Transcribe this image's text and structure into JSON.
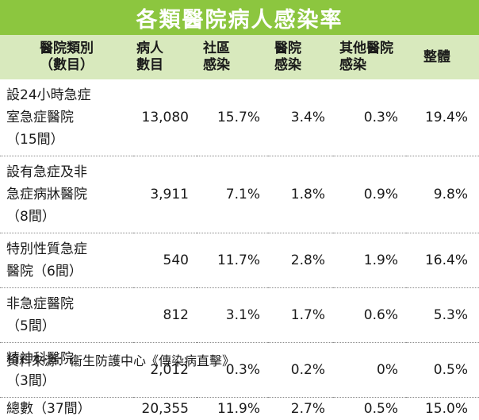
{
  "title": "各類醫院病人感染率",
  "headers": {
    "category": [
      "醫院類別",
      "（數目）"
    ],
    "patients": [
      "病人",
      "數目"
    ],
    "community": [
      "社區",
      "感染"
    ],
    "hospital": [
      "醫院",
      "感染"
    ],
    "other": [
      "其他醫院",
      "感染"
    ],
    "total": [
      "整體"
    ]
  },
  "rows": [
    {
      "lines": [
        "設24小時急症",
        "室急症醫院",
        "（15間）"
      ],
      "patients": "13,080",
      "community": "15.7%",
      "hospital": "3.4%",
      "other": "0.3%",
      "total": "19.4%"
    },
    {
      "lines": [
        "設有急症及非",
        "急症病牀醫院",
        "（8間）"
      ],
      "patients": "3,911",
      "community": "7.1%",
      "hospital": "1.8%",
      "other": "0.9%",
      "total": "9.8%"
    },
    {
      "lines": [
        "特別性質急症",
        "醫院（6間）"
      ],
      "patients": "540",
      "community": "11.7%",
      "hospital": "2.8%",
      "other": "1.9%",
      "total": "16.4%"
    },
    {
      "lines": [
        "非急症醫院",
        "（5間）"
      ],
      "patients": "812",
      "community": "3.1%",
      "hospital": "1.7%",
      "other": "0.6%",
      "total": "5.3%"
    },
    {
      "lines": [
        "精神科醫院",
        "（3間）"
      ],
      "patients": "2,012",
      "community": "0.3%",
      "hospital": "0.2%",
      "other": "0%",
      "total": "0.5%"
    },
    {
      "lines": [
        "總數（37間）"
      ],
      "patients": "20,355",
      "community": "11.9%",
      "hospital": "2.7%",
      "other": "0.5%",
      "total": "15.0%"
    }
  ],
  "source": "資料來源：衞生防護中心《傳染病直擊》",
  "colors": {
    "title_bg": "#8cc63f",
    "header_bg": "#d8e9bd"
  }
}
